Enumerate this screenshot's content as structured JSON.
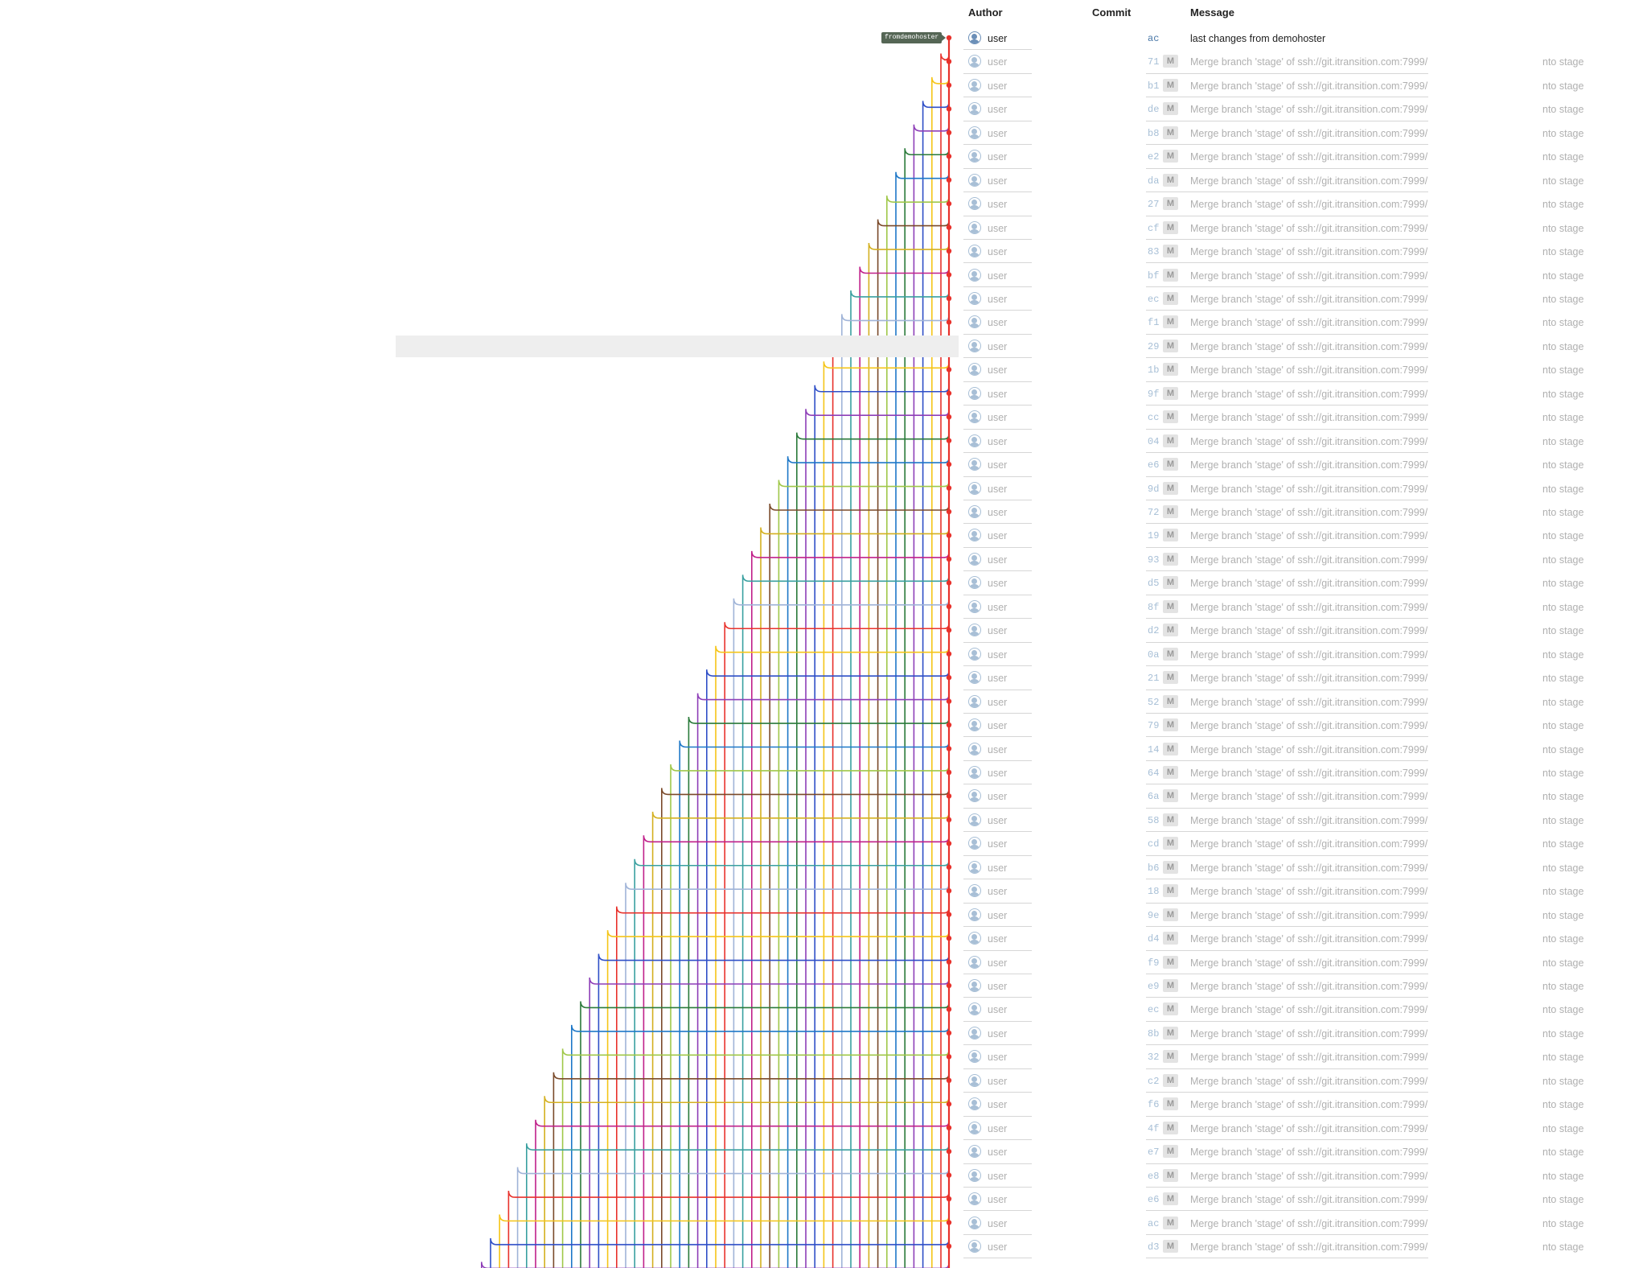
{
  "headers": {
    "author": "Author",
    "commit": "Commit",
    "message": "Message"
  },
  "ref_label": "fromdemohoster",
  "commits": [
    {
      "author": "user",
      "hash": "ac",
      "merge": false,
      "message": "last changes from demohoster",
      "tail": ""
    },
    {
      "author": "user",
      "hash": "71",
      "merge": true,
      "message": "Merge branch 'stage' of ssh://git.itransition.com:7999/",
      "tail": "nto stage"
    },
    {
      "author": "user",
      "hash": "b1",
      "merge": true,
      "message": "Merge branch 'stage' of ssh://git.itransition.com:7999/",
      "tail": "nto stage"
    },
    {
      "author": "user",
      "hash": "de",
      "merge": true,
      "message": "Merge branch 'stage' of ssh://git.itransition.com:7999/",
      "tail": "nto stage"
    },
    {
      "author": "user",
      "hash": "b8",
      "merge": true,
      "message": "Merge branch 'stage' of ssh://git.itransition.com:7999/",
      "tail": "nto stage"
    },
    {
      "author": "user",
      "hash": "e2",
      "merge": true,
      "message": "Merge branch 'stage' of ssh://git.itransition.com:7999/",
      "tail": "nto stage"
    },
    {
      "author": "user",
      "hash": "da",
      "merge": true,
      "message": "Merge branch 'stage' of ssh://git.itransition.com:7999/",
      "tail": "nto stage"
    },
    {
      "author": "user",
      "hash": "27",
      "merge": true,
      "message": "Merge branch 'stage' of ssh://git.itransition.com:7999/",
      "tail": "nto stage"
    },
    {
      "author": "user",
      "hash": "cf",
      "merge": true,
      "message": "Merge branch 'stage' of ssh://git.itransition.com:7999/",
      "tail": "nto stage"
    },
    {
      "author": "user",
      "hash": "83",
      "merge": true,
      "message": "Merge branch 'stage' of ssh://git.itransition.com:7999/",
      "tail": "nto stage"
    },
    {
      "author": "user",
      "hash": "bf",
      "merge": true,
      "message": "Merge branch 'stage' of ssh://git.itransition.com:7999/",
      "tail": "nto stage"
    },
    {
      "author": "user",
      "hash": "ec",
      "merge": true,
      "message": "Merge branch 'stage' of ssh://git.itransition.com:7999/",
      "tail": "nto stage"
    },
    {
      "author": "user",
      "hash": "f1",
      "merge": true,
      "message": "Merge branch 'stage' of ssh://git.itransition.com:7999/",
      "tail": "nto stage"
    },
    {
      "author": "user",
      "hash": "29",
      "merge": true,
      "message": "Merge branch 'stage' of ssh://git.itransition.com:7999/",
      "tail": "nto stage"
    },
    {
      "author": "user",
      "hash": "1b",
      "merge": true,
      "message": "Merge branch 'stage' of ssh://git.itransition.com:7999/",
      "tail": "nto stage"
    },
    {
      "author": "user",
      "hash": "9f",
      "merge": true,
      "message": "Merge branch 'stage' of ssh://git.itransition.com:7999/",
      "tail": "nto stage"
    },
    {
      "author": "user",
      "hash": "cc",
      "merge": true,
      "message": "Merge branch 'stage' of ssh://git.itransition.com:7999/",
      "tail": "nto stage"
    },
    {
      "author": "user",
      "hash": "04",
      "merge": true,
      "message": "Merge branch 'stage' of ssh://git.itransition.com:7999/",
      "tail": "nto stage"
    },
    {
      "author": "user",
      "hash": "e6",
      "merge": true,
      "message": "Merge branch 'stage' of ssh://git.itransition.com:7999/",
      "tail": "nto stage"
    },
    {
      "author": "user",
      "hash": "9d",
      "merge": true,
      "message": "Merge branch 'stage' of ssh://git.itransition.com:7999/",
      "tail": "nto stage"
    },
    {
      "author": "user",
      "hash": "72",
      "merge": true,
      "message": "Merge branch 'stage' of ssh://git.itransition.com:7999/",
      "tail": "nto stage"
    },
    {
      "author": "user",
      "hash": "19",
      "merge": true,
      "message": "Merge branch 'stage' of ssh://git.itransition.com:7999/",
      "tail": "nto stage"
    },
    {
      "author": "user",
      "hash": "93",
      "merge": true,
      "message": "Merge branch 'stage' of ssh://git.itransition.com:7999/",
      "tail": "nto stage"
    },
    {
      "author": "user",
      "hash": "d5",
      "merge": true,
      "message": "Merge branch 'stage' of ssh://git.itransition.com:7999/",
      "tail": "nto stage"
    },
    {
      "author": "user",
      "hash": "8f",
      "merge": true,
      "message": "Merge branch 'stage' of ssh://git.itransition.com:7999/",
      "tail": "nto stage"
    },
    {
      "author": "user",
      "hash": "d2",
      "merge": true,
      "message": "Merge branch 'stage' of ssh://git.itransition.com:7999/",
      "tail": "nto stage"
    },
    {
      "author": "user",
      "hash": "0a",
      "merge": true,
      "message": "Merge branch 'stage' of ssh://git.itransition.com:7999/",
      "tail": "nto stage"
    },
    {
      "author": "user",
      "hash": "21",
      "merge": true,
      "message": "Merge branch 'stage' of ssh://git.itransition.com:7999/",
      "tail": "nto stage"
    },
    {
      "author": "user",
      "hash": "52",
      "merge": true,
      "message": "Merge branch 'stage' of ssh://git.itransition.com:7999/",
      "tail": "nto stage"
    },
    {
      "author": "user",
      "hash": "79",
      "merge": true,
      "message": "Merge branch 'stage' of ssh://git.itransition.com:7999/",
      "tail": "nto stage"
    },
    {
      "author": "user",
      "hash": "14",
      "merge": true,
      "message": "Merge branch 'stage' of ssh://git.itransition.com:7999/",
      "tail": "nto stage"
    },
    {
      "author": "user",
      "hash": "64",
      "merge": true,
      "message": "Merge branch 'stage' of ssh://git.itransition.com:7999/",
      "tail": "nto stage"
    },
    {
      "author": "user",
      "hash": "6a",
      "merge": true,
      "message": "Merge branch 'stage' of ssh://git.itransition.com:7999/",
      "tail": "nto stage"
    },
    {
      "author": "user",
      "hash": "58",
      "merge": true,
      "message": "Merge branch 'stage' of ssh://git.itransition.com:7999/",
      "tail": "nto stage"
    },
    {
      "author": "user",
      "hash": "cd",
      "merge": true,
      "message": "Merge branch 'stage' of ssh://git.itransition.com:7999/",
      "tail": "nto stage"
    },
    {
      "author": "user",
      "hash": "b6",
      "merge": true,
      "message": "Merge branch 'stage' of ssh://git.itransition.com:7999/",
      "tail": "nto stage"
    },
    {
      "author": "user",
      "hash": "18",
      "merge": true,
      "message": "Merge branch 'stage' of ssh://git.itransition.com:7999/",
      "tail": "nto stage"
    },
    {
      "author": "user",
      "hash": "9e",
      "merge": true,
      "message": "Merge branch 'stage' of ssh://git.itransition.com:7999/",
      "tail": "nto stage"
    },
    {
      "author": "user",
      "hash": "d4",
      "merge": true,
      "message": "Merge branch 'stage' of ssh://git.itransition.com:7999/",
      "tail": "nto stage"
    },
    {
      "author": "user",
      "hash": "f9",
      "merge": true,
      "message": "Merge branch 'stage' of ssh://git.itransition.com:7999/",
      "tail": "nto stage"
    },
    {
      "author": "user",
      "hash": "e9",
      "merge": true,
      "message": "Merge branch 'stage' of ssh://git.itransition.com:7999/",
      "tail": "nto stage"
    },
    {
      "author": "user",
      "hash": "ec",
      "merge": true,
      "message": "Merge branch 'stage' of ssh://git.itransition.com:7999/",
      "tail": "nto stage"
    },
    {
      "author": "user",
      "hash": "8b",
      "merge": true,
      "message": "Merge branch 'stage' of ssh://git.itransition.com:7999/",
      "tail": "nto stage"
    },
    {
      "author": "user",
      "hash": "32",
      "merge": true,
      "message": "Merge branch 'stage' of ssh://git.itransition.com:7999/",
      "tail": "nto stage"
    },
    {
      "author": "user",
      "hash": "c2",
      "merge": true,
      "message": "Merge branch 'stage' of ssh://git.itransition.com:7999/",
      "tail": "nto stage"
    },
    {
      "author": "user",
      "hash": "f6",
      "merge": true,
      "message": "Merge branch 'stage' of ssh://git.itransition.com:7999/",
      "tail": "nto stage"
    },
    {
      "author": "user",
      "hash": "4f",
      "merge": true,
      "message": "Merge branch 'stage' of ssh://git.itransition.com:7999/",
      "tail": "nto stage"
    },
    {
      "author": "user",
      "hash": "e7",
      "merge": true,
      "message": "Merge branch 'stage' of ssh://git.itransition.com:7999/",
      "tail": "nto stage"
    },
    {
      "author": "user",
      "hash": "e8",
      "merge": true,
      "message": "Merge branch 'stage' of ssh://git.itransition.com:7999/",
      "tail": "nto stage"
    },
    {
      "author": "user",
      "hash": "e6",
      "merge": true,
      "message": "Merge branch 'stage' of ssh://git.itransition.com:7999/",
      "tail": "nto stage"
    },
    {
      "author": "user",
      "hash": "ac",
      "merge": true,
      "message": "Merge branch 'stage' of ssh://git.itransition.com:7999/",
      "tail": "nto stage"
    },
    {
      "author": "user",
      "hash": "d3",
      "merge": true,
      "message": "Merge branch 'stage' of ssh://git.itransition.com:7999/",
      "tail": "nto stage"
    }
  ],
  "merge_badge": "M",
  "colors": {
    "main_line": "#e8322c",
    "lanes": [
      "#e8322c",
      "#f5c518",
      "#2f4fc7",
      "#8e3fb8",
      "#2a7a3a",
      "#1e78c8",
      "#a0c84a",
      "#7a4a2a",
      "#d4b020",
      "#c0208a",
      "#3aa0a0",
      "#a0b4d8"
    ]
  },
  "highlighted_row": 13
}
